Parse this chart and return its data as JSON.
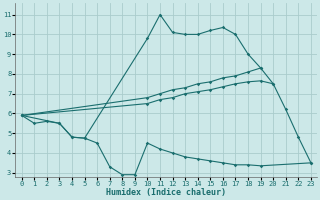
{
  "xlabel": "Humidex (Indice chaleur)",
  "bg_color": "#cce8e8",
  "grid_color": "#aacccc",
  "line_color": "#1a6e6e",
  "xlim": [
    -0.5,
    23.5
  ],
  "ylim": [
    2.8,
    11.6
  ],
  "yticks": [
    3,
    4,
    5,
    6,
    7,
    8,
    9,
    10,
    11
  ],
  "xticks": [
    0,
    1,
    2,
    3,
    4,
    5,
    6,
    7,
    8,
    9,
    10,
    11,
    12,
    13,
    14,
    15,
    16,
    17,
    18,
    19,
    20,
    21,
    22,
    23
  ],
  "series": [
    {
      "x": [
        0,
        1,
        2,
        3,
        4,
        5,
        10,
        11,
        12,
        13,
        14,
        15,
        16,
        17,
        18,
        19,
        20,
        21,
        22,
        23
      ],
      "y": [
        5.9,
        5.5,
        5.6,
        5.5,
        4.8,
        4.75,
        9.8,
        11.0,
        10.1,
        10.0,
        10.0,
        10.2,
        10.35,
        10.0,
        9.0,
        8.3,
        7.5,
        6.2,
        4.8,
        3.5
      ]
    },
    {
      "x": [
        0,
        10,
        11,
        12,
        13,
        14,
        15,
        16,
        17,
        18,
        19
      ],
      "y": [
        5.9,
        6.8,
        7.0,
        7.2,
        7.3,
        7.5,
        7.6,
        7.8,
        7.9,
        8.1,
        8.3
      ]
    },
    {
      "x": [
        0,
        10,
        11,
        12,
        13,
        14,
        15,
        16,
        17,
        18,
        19,
        20
      ],
      "y": [
        5.9,
        6.5,
        6.7,
        6.8,
        7.0,
        7.1,
        7.2,
        7.35,
        7.5,
        7.6,
        7.65,
        7.5
      ]
    },
    {
      "x": [
        0,
        3,
        4,
        5,
        6,
        7,
        8,
        9,
        10,
        11,
        12,
        13,
        14,
        15,
        16,
        17,
        18,
        19,
        23
      ],
      "y": [
        5.9,
        5.5,
        4.8,
        4.75,
        4.5,
        3.3,
        2.9,
        2.9,
        4.5,
        4.2,
        4.0,
        3.8,
        3.7,
        3.6,
        3.5,
        3.4,
        3.4,
        3.35,
        3.5
      ]
    }
  ]
}
